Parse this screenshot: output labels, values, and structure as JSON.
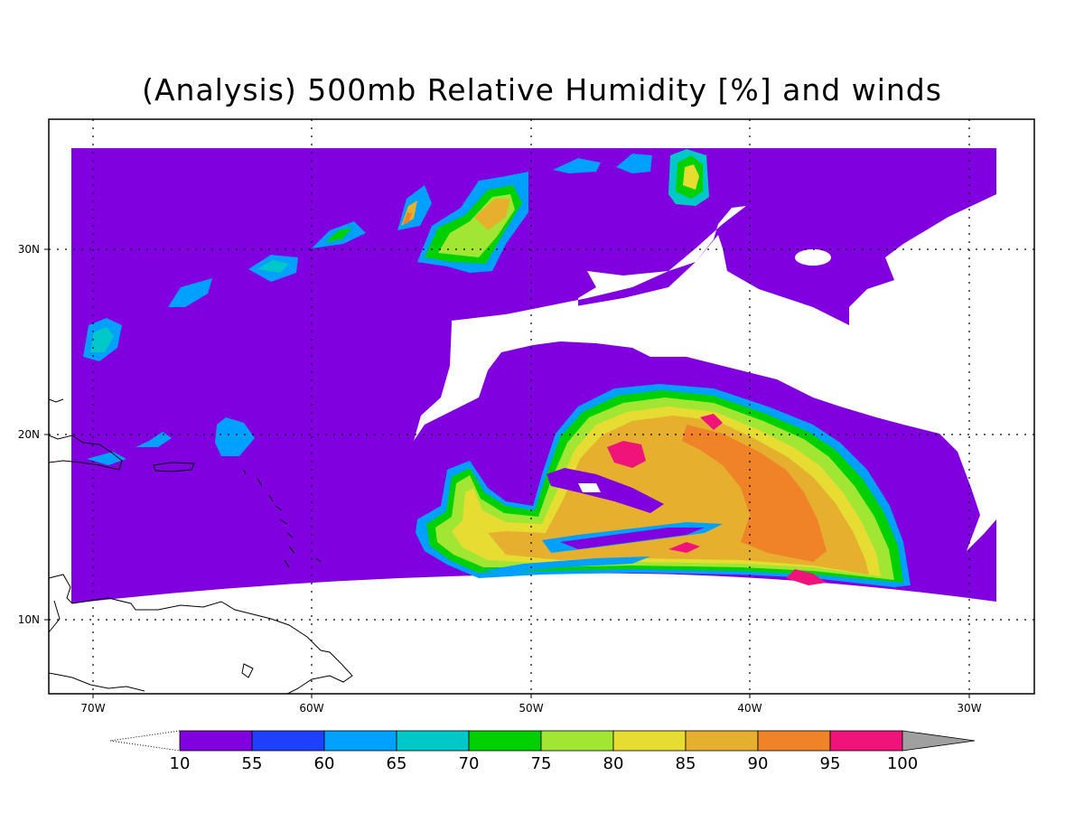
{
  "title": "(Analysis) 500mb Relative Humidity [%] and winds",
  "lon_labels": [
    "70W",
    "60W",
    "50W",
    "40W",
    "30W"
  ],
  "lat_labels": [
    "30N",
    "20N",
    "10N"
  ],
  "colorbar": {
    "labels": [
      "10",
      "55",
      "60",
      "65",
      "70",
      "75",
      "80",
      "85",
      "90",
      "95",
      "100"
    ],
    "colors": [
      "#8000e0",
      "#2040ff",
      "#00a0ff",
      "#00c8c8",
      "#00d000",
      "#a0e632",
      "#e6dc32",
      "#e6af2d",
      "#f08228",
      "#f0147a",
      "#a0a0a0"
    ]
  },
  "colors": {
    "rh_10_55": "#8000e0",
    "rh_55_60": "#2040ff",
    "rh_60_65": "#00a0ff",
    "rh_65_70": "#00c8c8",
    "rh_70_75": "#00d000",
    "rh_75_80": "#a0e632",
    "rh_80_85": "#e6dc32",
    "rh_85_90": "#e6af2d",
    "rh_90_95": "#f08228",
    "rh_95_100": "#f0147a"
  }
}
